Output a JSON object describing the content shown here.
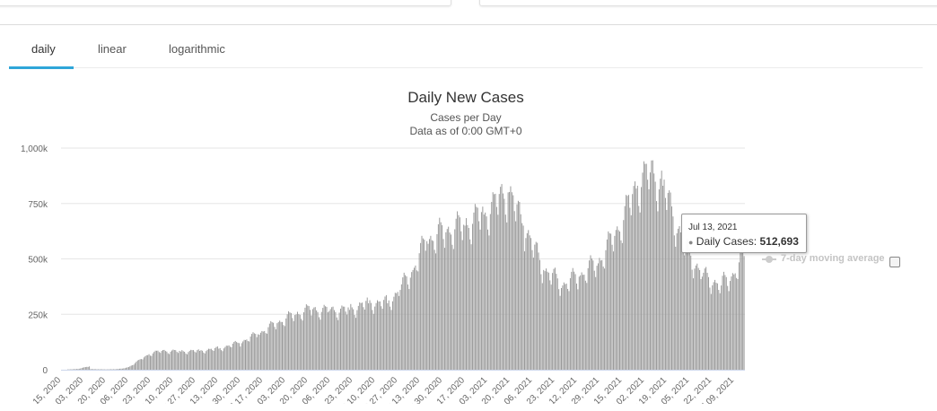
{
  "tabs": [
    {
      "label": "daily",
      "active": true
    },
    {
      "label": "linear",
      "active": false
    },
    {
      "label": "logarithmic",
      "active": false
    }
  ],
  "colors": {
    "bar": "#999999",
    "grid": "#e6e6e6",
    "tab_accent": "#2fa6d9",
    "legend_inactive": "#cccccc"
  },
  "tooltip": {
    "date": "Jul 13, 2021",
    "series": "Daily Cases:",
    "value": "512,693"
  },
  "legend": {
    "label": "7-day moving average",
    "enabled": false
  },
  "chart_data": {
    "type": "bar",
    "title": "Daily New Cases",
    "subtitle": "Cases per Day",
    "note": "Data as of 0:00 GMT+0",
    "series": [
      {
        "name": "Daily Cases"
      }
    ],
    "ylim": [
      0,
      1000000
    ],
    "yticks": [
      {
        "value": 0,
        "label": "0"
      },
      {
        "value": 250000,
        "label": "250k"
      },
      {
        "value": 500000,
        "label": "500k"
      },
      {
        "value": 750000,
        "label": "750k"
      },
      {
        "value": 1000000,
        "label": "1,000k"
      }
    ],
    "grid": true,
    "legend_position": "right",
    "xticks": [
      "Feb 15, 2020",
      "Mar 03, 2020",
      "Mar 20, 2020",
      "Apr 06, 2020",
      "Apr 23, 2020",
      "May 10, 2020",
      "May 27, 2020",
      "Jun 13, 2020",
      "Jun 30, 2020",
      "Jul 17, 2020",
      "Aug 03, 2020",
      "Aug 20, 2020",
      "Sep 06, 2020",
      "Sep 23, 2020",
      "Oct 10, 2020",
      "Oct 27, 2020",
      "Nov 13, 2020",
      "Nov 30, 2020",
      "Dec 17, 2020",
      "Jan 03, 2021",
      "Jan 20, 2021",
      "Feb 06, 2021",
      "Feb 23, 2021",
      "Mar 12, 2021",
      "Mar 29, 2021",
      "Apr 15, 2021",
      "May 02, 2021",
      "May 19, 2021",
      "Jun 05, 2021",
      "Jun 22, 2021",
      "Jul 09, 2021"
    ],
    "points": [
      [
        "2020-01-22",
        0
      ],
      [
        "2020-02-04",
        3500
      ],
      [
        "2020-02-13",
        15000
      ],
      [
        "2020-02-14",
        3000
      ],
      [
        "2020-02-25",
        1500
      ],
      [
        "2020-03-05",
        2500
      ],
      [
        "2020-03-10",
        5000
      ],
      [
        "2020-03-15",
        12000
      ],
      [
        "2020-03-20",
        30000
      ],
      [
        "2020-03-25",
        48000
      ],
      [
        "2020-03-31",
        70000
      ],
      [
        "2020-04-10",
        85000
      ],
      [
        "2020-04-25",
        82000
      ],
      [
        "2020-05-10",
        85000
      ],
      [
        "2020-05-25",
        95000
      ],
      [
        "2020-06-10",
        120000
      ],
      [
        "2020-06-25",
        160000
      ],
      [
        "2020-07-10",
        210000
      ],
      [
        "2020-07-25",
        250000
      ],
      [
        "2020-08-05",
        270000
      ],
      [
        "2020-08-20",
        265000
      ],
      [
        "2020-09-05",
        270000
      ],
      [
        "2020-09-20",
        300000
      ],
      [
        "2020-10-05",
        300000
      ],
      [
        "2020-10-15",
        360000
      ],
      [
        "2020-10-25",
        450000
      ],
      [
        "2020-11-05",
        580000
      ],
      [
        "2020-11-20",
        620000
      ],
      [
        "2020-12-05",
        650000
      ],
      [
        "2020-12-20",
        700000
      ],
      [
        "2021-01-08",
        800000
      ],
      [
        "2021-01-20",
        650000
      ],
      [
        "2021-02-05",
        450000
      ],
      [
        "2021-02-20",
        380000
      ],
      [
        "2021-03-05",
        420000
      ],
      [
        "2021-03-20",
        480000
      ],
      [
        "2021-04-05",
        630000
      ],
      [
        "2021-04-20",
        830000
      ],
      [
        "2021-04-30",
        890000
      ],
      [
        "2021-05-10",
        830000
      ],
      [
        "2021-05-25",
        580000
      ],
      [
        "2021-06-10",
        420000
      ],
      [
        "2021-06-25",
        380000
      ],
      [
        "2021-07-05",
        430000
      ],
      [
        "2021-07-13",
        512693
      ]
    ]
  }
}
